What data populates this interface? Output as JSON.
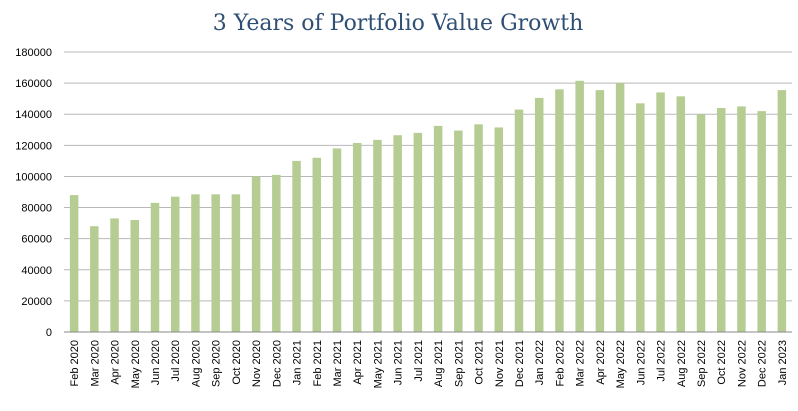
{
  "chart_data": {
    "type": "bar",
    "title": "3 Years of Portfolio Value Growth",
    "xlabel": "",
    "ylabel": "",
    "ylim": [
      0,
      180000
    ],
    "yticks": [
      0,
      20000,
      40000,
      60000,
      80000,
      100000,
      120000,
      140000,
      160000,
      180000
    ],
    "grid": true,
    "legend": "none",
    "bar_color": "#b5cc92",
    "categories": [
      "Feb 2020",
      "Mar 2020",
      "Apr 2020",
      "May 2020",
      "Jun 2020",
      "Jul 2020",
      "Aug 2020",
      "Sep 2020",
      "Oct 2020",
      "Nov 2020",
      "Dec 2020",
      "Jan 2021",
      "Feb 2021",
      "Mar 2021",
      "Apr 2021",
      "May 2021",
      "Jun 2021",
      "Jul 2021",
      "Aug 2021",
      "Sep 2021",
      "Oct 2021",
      "Nov 2021",
      "Dec 2021",
      "Jan 2022",
      "Feb 2022",
      "Mar 2022",
      "Apr 2022",
      "May 2022",
      "Jun 2022",
      "Jul 2022",
      "Aug 2022",
      "Sep 2022",
      "Oct 2022",
      "Nov 2022",
      "Dec 2022",
      "Jan 2023"
    ],
    "values": [
      88000,
      68000,
      73000,
      72000,
      83000,
      87000,
      88500,
      88500,
      88500,
      100000,
      101000,
      110000,
      112000,
      118000,
      121500,
      123500,
      126500,
      128000,
      132500,
      129500,
      133500,
      131500,
      143000,
      150500,
      156000,
      161500,
      155500,
      160000,
      147000,
      154000,
      151500,
      140000,
      144000,
      145000,
      142000,
      155500
    ]
  }
}
